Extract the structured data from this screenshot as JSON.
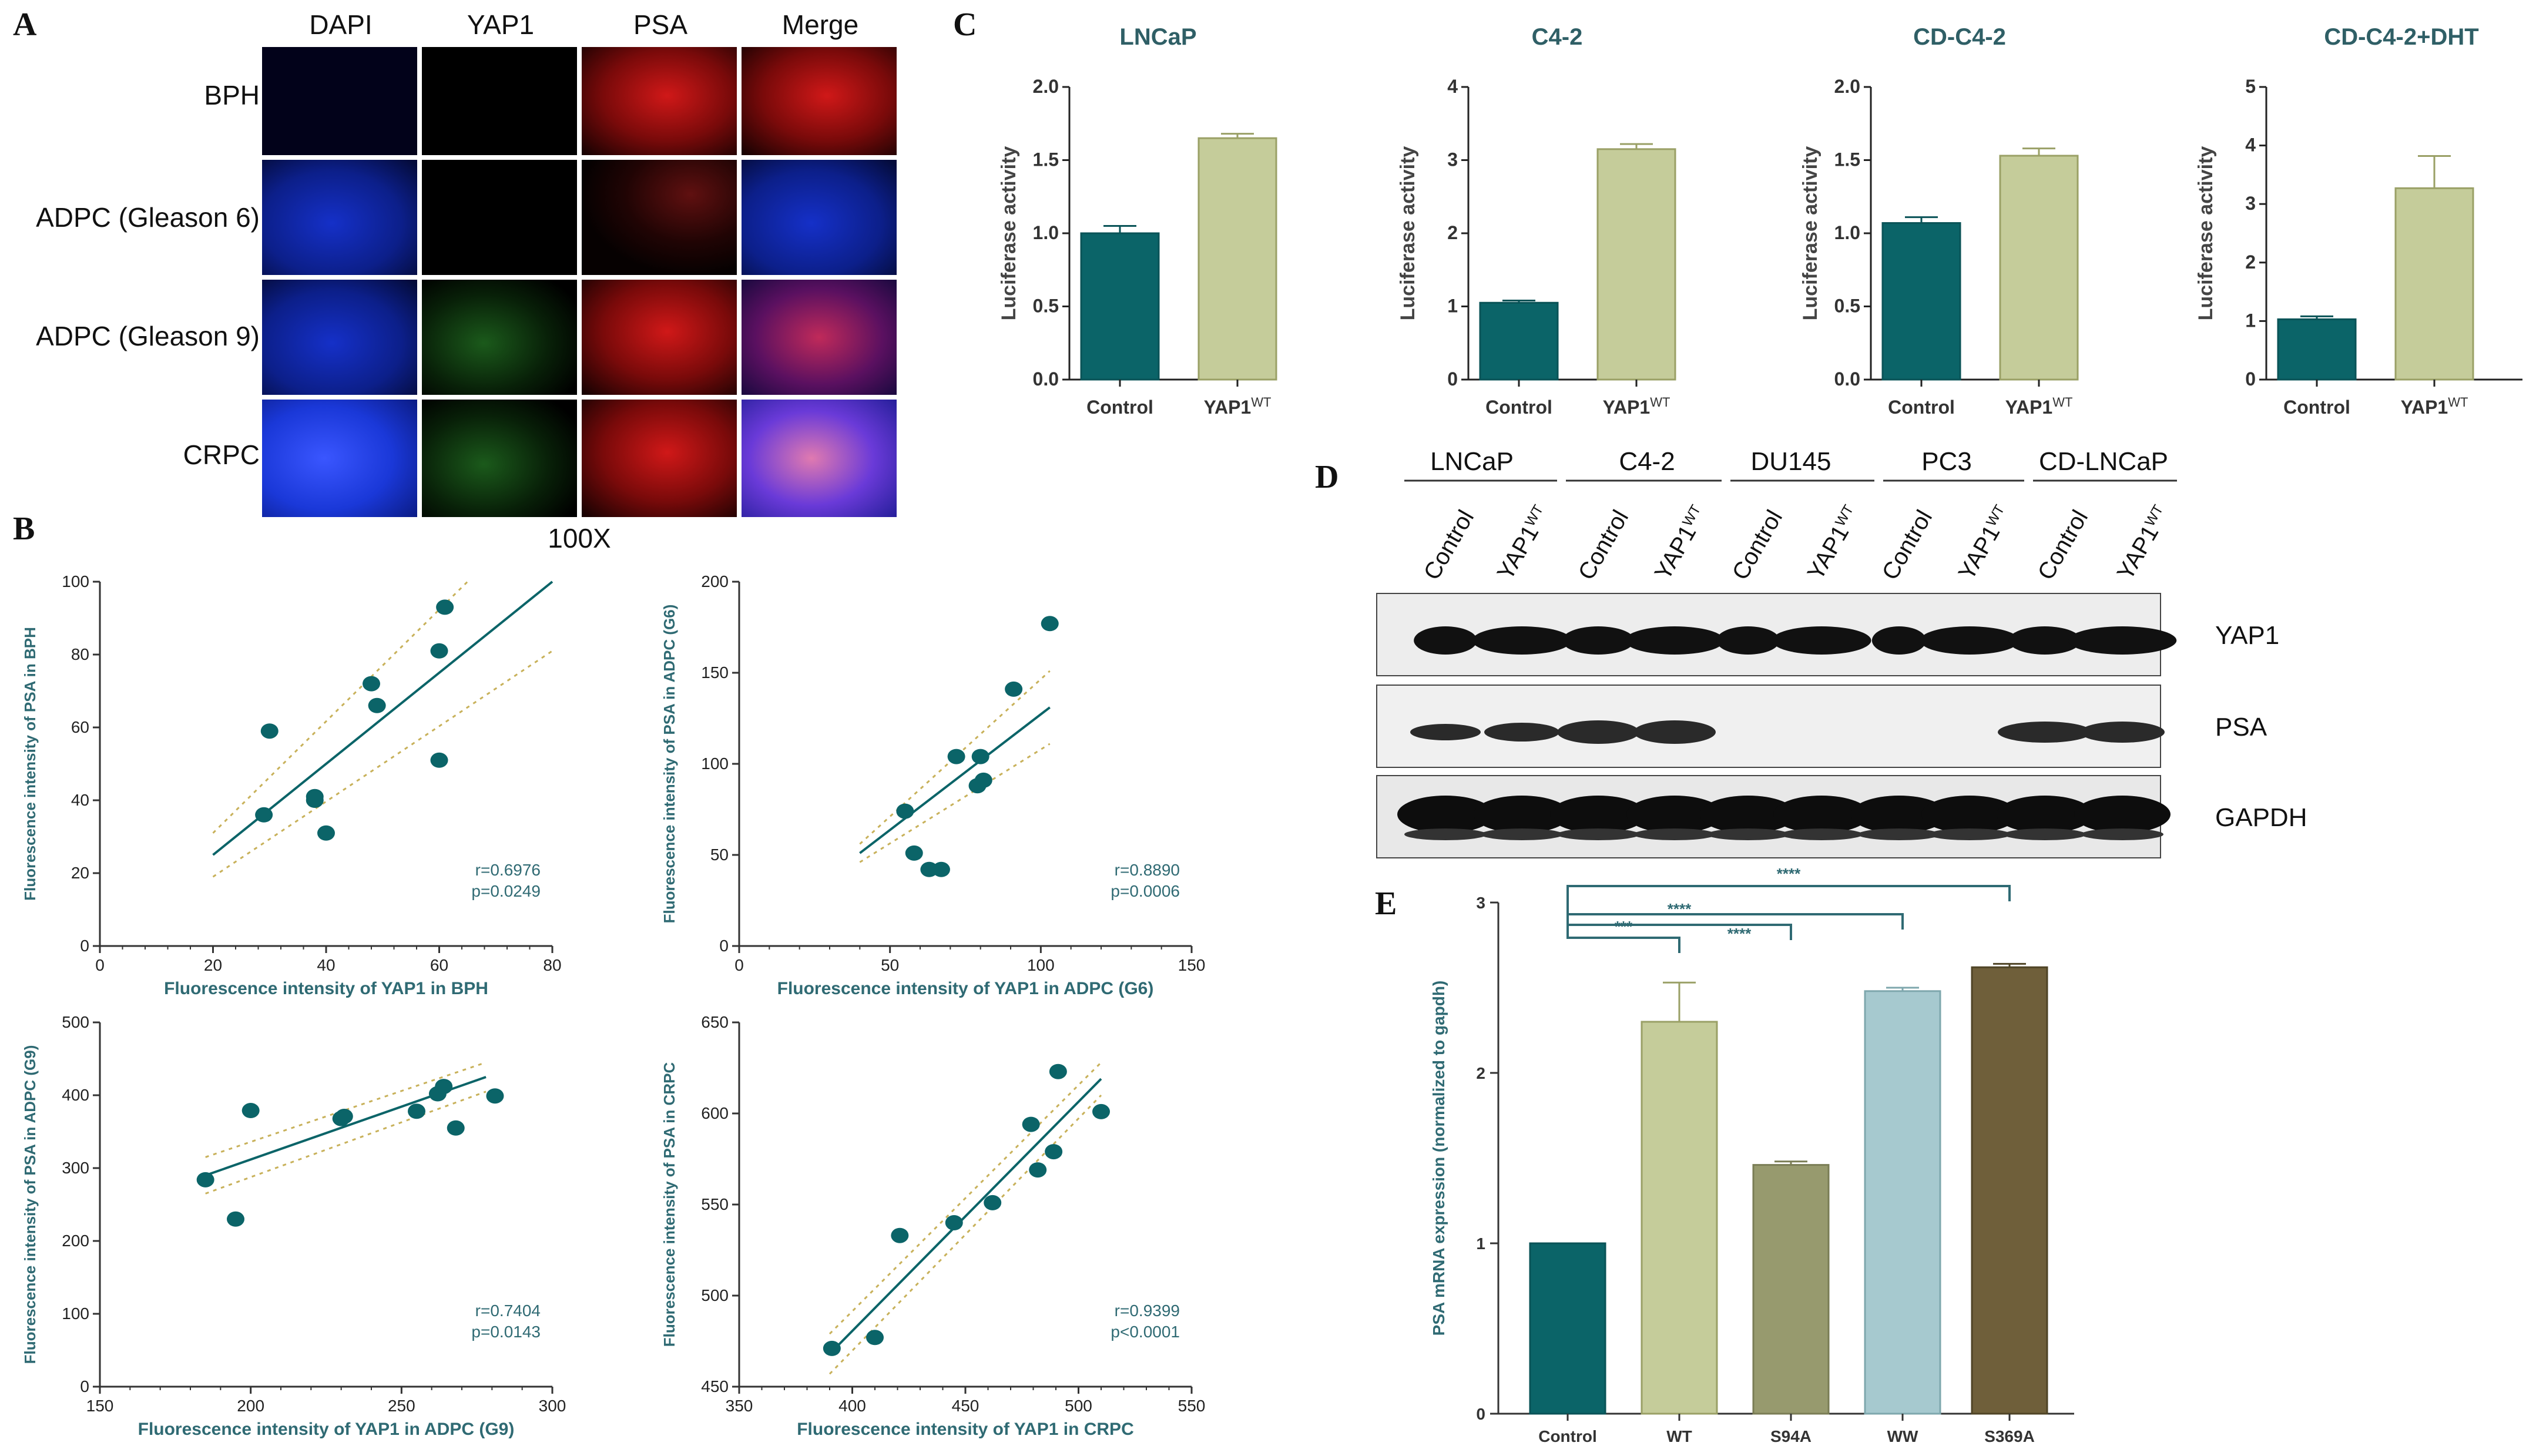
{
  "panel_letters": {
    "a": "A",
    "b": "B",
    "c": "C",
    "d": "D",
    "e": "E"
  },
  "panel_a": {
    "columns": [
      "DAPI",
      "YAP1",
      "PSA",
      "Merge"
    ],
    "rows": [
      "BPH",
      "ADPC (Gleason 6)",
      "ADPC (Gleason 9)",
      "CRPC"
    ],
    "magnification": "100X"
  },
  "panel_d": {
    "cell_lines": [
      "LNCaP",
      "C4-2",
      "DU145",
      "PC3",
      "CD-LNCaP"
    ],
    "lanes": [
      "Control",
      "YAP1",
      "Control",
      "YAP1",
      "Control",
      "YAP1",
      "Control",
      "YAP1",
      "Control",
      "YAP1"
    ],
    "superscript": "WT",
    "bands": [
      "YAP1",
      "PSA",
      "GAPDH"
    ]
  },
  "colors": {
    "teal": "#0b6468",
    "olive": "#c5cc9a",
    "mid_olive": "#979a6e",
    "light_blue": "#a6c9cf",
    "brown": "#6f5f3a",
    "axis_teal": "#2f6a73"
  },
  "chart_data": [
    {
      "id": "C1",
      "type": "bar",
      "title": "LNCaP",
      "ylabel": "Luciferase activity",
      "categories": [
        "Control",
        "YAP1"
      ],
      "category_superscripts": [
        "",
        "WT"
      ],
      "values": [
        1.0,
        1.65
      ],
      "errors": [
        0.05,
        0.03
      ],
      "ylim": [
        0,
        2.0
      ],
      "yticks": [
        0.0,
        0.5,
        1.0,
        1.5,
        2.0
      ],
      "ytick_labels": [
        "0.0",
        "0.5",
        "1.0",
        "1.5",
        "2.0"
      ]
    },
    {
      "id": "C2",
      "type": "bar",
      "title": "C4-2",
      "ylabel": "Luciferase activity",
      "categories": [
        "Control",
        "YAP1"
      ],
      "category_superscripts": [
        "",
        "WT"
      ],
      "values": [
        1.05,
        3.15
      ],
      "errors": [
        0.03,
        0.07
      ],
      "ylim": [
        0,
        4
      ],
      "yticks": [
        0,
        1,
        2,
        3,
        4
      ],
      "ytick_labels": [
        "0",
        "1",
        "2",
        "3",
        "4"
      ]
    },
    {
      "id": "C3",
      "type": "bar",
      "title": "CD-C4-2",
      "ylabel": "Luciferase activity",
      "categories": [
        "Control",
        "YAP1"
      ],
      "category_superscripts": [
        "",
        "WT"
      ],
      "values": [
        1.07,
        1.53
      ],
      "errors": [
        0.04,
        0.05
      ],
      "ylim": [
        0,
        2.0
      ],
      "yticks": [
        0.0,
        0.5,
        1.0,
        1.5,
        2.0
      ],
      "ytick_labels": [
        "0.0",
        "0.5",
        "1.0",
        "1.5",
        "2.0"
      ]
    },
    {
      "id": "C4",
      "type": "bar",
      "title": "CD-C4-2+DHT",
      "ylabel": "Luciferase activity",
      "categories": [
        "Control",
        "YAP1"
      ],
      "category_superscripts": [
        "",
        "WT"
      ],
      "values": [
        1.03,
        3.27
      ],
      "errors": [
        0.05,
        0.55
      ],
      "ylim": [
        0,
        5
      ],
      "yticks": [
        0,
        1,
        2,
        3,
        4,
        5
      ],
      "ytick_labels": [
        "0",
        "1",
        "2",
        "3",
        "4",
        "5"
      ]
    },
    {
      "id": "B1",
      "type": "scatter",
      "xlabel": "Fluorescence intensity of YAP1 in BPH",
      "ylabel": "Fluorescence intensity of PSA in BPH",
      "xlim": [
        0,
        80
      ],
      "ylim": [
        0,
        100
      ],
      "xticks": [
        0,
        20,
        40,
        60,
        80
      ],
      "yticks": [
        0,
        20,
        40,
        60,
        80,
        100
      ],
      "x": [
        29,
        30,
        38,
        38,
        40,
        48,
        49,
        60,
        60,
        61
      ],
      "y": [
        36,
        59,
        40,
        41,
        31,
        72,
        66,
        81,
        51,
        93
      ],
      "fit": {
        "x": [
          20,
          80
        ],
        "y": [
          25,
          100
        ]
      },
      "ci_upper": {
        "x": [
          20,
          65
        ],
        "y": [
          31,
          100
        ]
      },
      "ci_lower": {
        "x": [
          20,
          80
        ],
        "y": [
          19,
          81
        ]
      },
      "annotation": [
        "r=0.6976",
        "p=0.0249"
      ]
    },
    {
      "id": "B2",
      "type": "scatter",
      "xlabel": "Fluorescence intensity of YAP1 in ADPC (G6)",
      "ylabel": "Fluorescence intensity of PSA in ADPC (G6)",
      "xlim": [
        0,
        150
      ],
      "ylim": [
        0,
        200
      ],
      "xticks": [
        0,
        50,
        100,
        150
      ],
      "yticks": [
        0,
        50,
        100,
        150,
        200
      ],
      "x": [
        55,
        58,
        63,
        67,
        72,
        79,
        80,
        81,
        91,
        103
      ],
      "y": [
        74,
        51,
        42,
        42,
        104,
        88,
        104,
        91,
        141,
        177
      ],
      "fit": {
        "x": [
          40,
          103
        ],
        "y": [
          51,
          131
        ]
      },
      "ci_upper": {
        "x": [
          40,
          103
        ],
        "y": [
          56,
          151
        ]
      },
      "ci_lower": {
        "x": [
          40,
          103
        ],
        "y": [
          46,
          111
        ]
      },
      "annotation": [
        "r=0.8890",
        "p=0.0006"
      ]
    },
    {
      "id": "B3",
      "type": "scatter",
      "xlabel": "Fluorescence intensity of YAP1 in ADPC (G9)",
      "ylabel": "Fluorescence intensity of PSA in ADPC (G9)",
      "xlim": [
        150,
        300
      ],
      "ylim": [
        0,
        500
      ],
      "xticks": [
        150,
        200,
        250,
        300
      ],
      "yticks": [
        0,
        100,
        200,
        300,
        400,
        500
      ],
      "x": [
        185,
        195,
        200,
        230,
        231,
        255,
        262,
        264,
        268,
        281
      ],
      "y": [
        284,
        230,
        379,
        368,
        371,
        378,
        402,
        412,
        355,
        399
      ],
      "fit": {
        "x": [
          185,
          278
        ],
        "y": [
          290,
          425
        ]
      },
      "ci_upper": {
        "x": [
          185,
          278
        ],
        "y": [
          315,
          445
        ]
      },
      "ci_lower": {
        "x": [
          185,
          278
        ],
        "y": [
          265,
          405
        ]
      },
      "annotation": [
        "r=0.7404",
        "p=0.0143"
      ]
    },
    {
      "id": "B4",
      "type": "scatter",
      "xlabel": "Fluorescence intensity of YAP1 in CRPC",
      "ylabel": "Fluorescence intensity of PSA in CRPC",
      "xlim": [
        350,
        550
      ],
      "ylim": [
        450,
        650
      ],
      "xticks": [
        350,
        400,
        450,
        500,
        550
      ],
      "yticks": [
        450,
        500,
        550,
        600,
        650
      ],
      "x": [
        391,
        410,
        421,
        445,
        462,
        479,
        482,
        489,
        491,
        510
      ],
      "y": [
        471,
        477,
        533,
        540,
        551,
        594,
        569,
        579,
        623,
        601
      ],
      "fit": {
        "x": [
          390,
          510
        ],
        "y": [
          468,
          619
        ]
      },
      "ci_upper": {
        "x": [
          390,
          510
        ],
        "y": [
          479,
          628
        ]
      },
      "ci_lower": {
        "x": [
          390,
          510
        ],
        "y": [
          457,
          610
        ]
      },
      "annotation": [
        "r=0.9399",
        "p<0.0001"
      ]
    },
    {
      "id": "E",
      "type": "bar",
      "ylabel": "PSA mRNA expression (normalized to gapdh)",
      "categories": [
        "Control",
        "WT",
        "S94A",
        "WW",
        "S369A"
      ],
      "values": [
        1.0,
        2.3,
        1.46,
        2.48,
        2.62
      ],
      "errors": [
        0.0,
        0.23,
        0.02,
        0.02,
        0.02
      ],
      "ylim": [
        0,
        3
      ],
      "yticks": [
        0,
        1,
        2,
        3
      ],
      "significance": [
        {
          "from": "Control",
          "to": "WT",
          "label": "***"
        },
        {
          "from": "Control",
          "to": "S94A",
          "label": "****"
        },
        {
          "from": "Control",
          "to": "WW",
          "label": "****"
        },
        {
          "from": "Control",
          "to": "S369A",
          "label": "****"
        }
      ]
    }
  ]
}
